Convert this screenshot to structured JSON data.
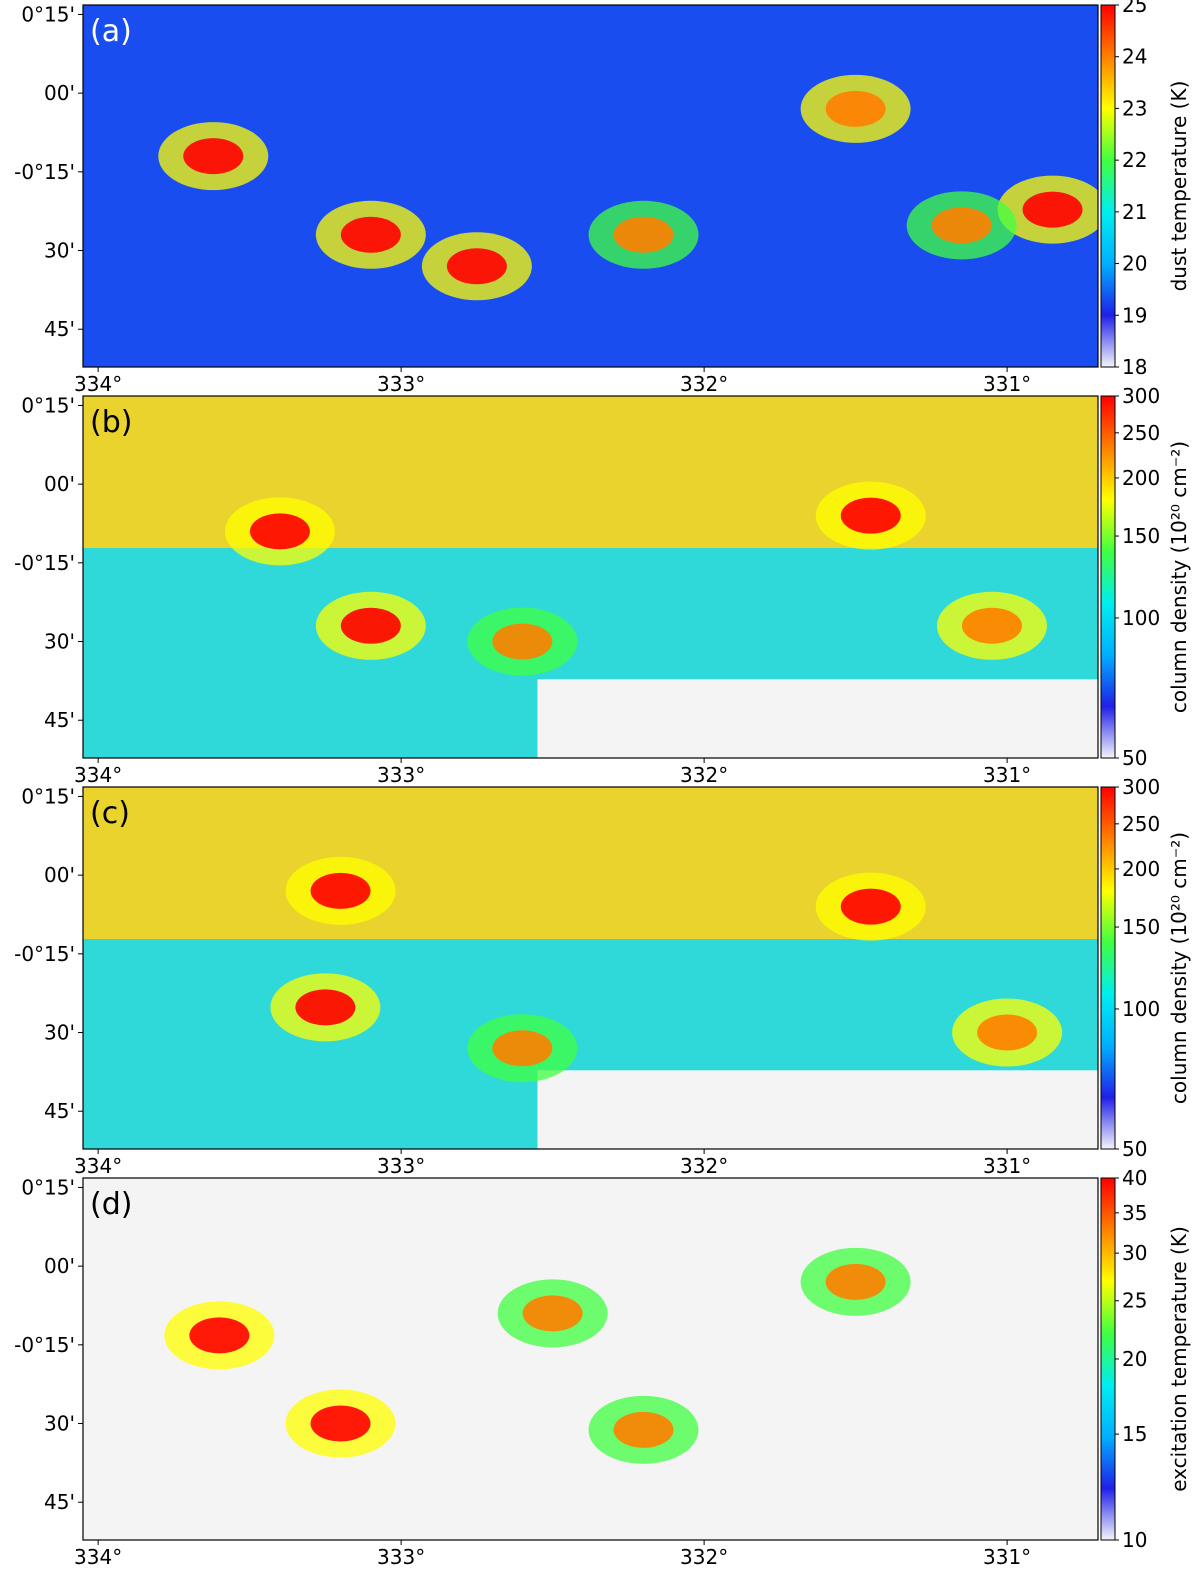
{
  "figure": {
    "x_axis": {
      "tick_labels": [
        "334°",
        "333°",
        "332°",
        "331°"
      ],
      "xlim": [
        334.05,
        330.7
      ]
    },
    "y_axis": {
      "tick_labels": [
        "0°15'",
        "00'",
        "-0°15'",
        "30'",
        "45'"
      ],
      "ylim": [
        -0.87,
        0.28
      ]
    }
  },
  "chart_data": [
    {
      "type": "heatmap",
      "panel_label": "(a)",
      "panel_label_color": "#ffffff",
      "colorbar": {
        "label": "dust temperature (K)",
        "ticks": [
          "25",
          "24",
          "23",
          "22",
          "21",
          "20",
          "19",
          "18"
        ],
        "range": [
          18,
          25
        ],
        "scale": "linear",
        "colors": [
          "#f4f4fb",
          "#2020e8",
          "#00b0ff",
          "#00eeee",
          "#40ff40",
          "#ffff00",
          "#ff8000",
          "#ff0000"
        ]
      },
      "features": [
        {
          "l": 333.62,
          "b": -0.2,
          "level": 1.0
        },
        {
          "l": 333.1,
          "b": -0.45,
          "level": 1.0
        },
        {
          "l": 332.75,
          "b": -0.55,
          "level": 0.95
        },
        {
          "l": 331.5,
          "b": -0.05,
          "level": 0.9
        },
        {
          "l": 330.85,
          "b": -0.37,
          "level": 1.0
        },
        {
          "l": 331.15,
          "b": -0.42,
          "level": 0.85
        },
        {
          "l": 332.2,
          "b": -0.45,
          "level": 0.85
        }
      ]
    },
    {
      "type": "heatmap",
      "panel_label": "(b)",
      "panel_label_color": "#000000",
      "colorbar": {
        "label": "column density (10²⁰ cm⁻²)",
        "ticks": [
          "300",
          "250",
          "200",
          "150",
          "100",
          "50"
        ],
        "range": [
          50,
          300
        ],
        "scale": "log",
        "colors": [
          "#f4f4fb",
          "#2020e8",
          "#00b0ff",
          "#00eeee",
          "#40ff40",
          "#ffff00",
          "#ff8000",
          "#ff0000"
        ]
      },
      "features": [
        {
          "l": 333.4,
          "b": -0.15,
          "level": 1.0
        },
        {
          "l": 333.1,
          "b": -0.45,
          "level": 1.0
        },
        {
          "l": 331.45,
          "b": -0.1,
          "level": 1.0
        },
        {
          "l": 331.05,
          "b": -0.45,
          "level": 0.9
        },
        {
          "l": 332.6,
          "b": -0.5,
          "level": 0.85
        }
      ]
    },
    {
      "type": "heatmap",
      "panel_label": "(c)",
      "panel_label_color": "#000000",
      "colorbar": {
        "label": "column density (10²⁰ cm⁻²)",
        "ticks": [
          "300",
          "250",
          "200",
          "150",
          "100",
          "50"
        ],
        "range": [
          50,
          300
        ],
        "scale": "log",
        "colors": [
          "#f4f4fb",
          "#2020e8",
          "#00b0ff",
          "#00eeee",
          "#40ff40",
          "#ffff00",
          "#ff8000",
          "#ff0000"
        ]
      },
      "features": [
        {
          "l": 333.2,
          "b": -0.05,
          "level": 1.0
        },
        {
          "l": 333.25,
          "b": -0.42,
          "level": 1.0
        },
        {
          "l": 331.45,
          "b": -0.1,
          "level": 1.0
        },
        {
          "l": 331.0,
          "b": -0.5,
          "level": 0.9
        },
        {
          "l": 332.6,
          "b": -0.55,
          "level": 0.85
        }
      ]
    },
    {
      "type": "heatmap",
      "panel_label": "(d)",
      "panel_label_color": "#000000",
      "colorbar": {
        "label": "excitation temperature (K)",
        "ticks": [
          "40",
          "35",
          "30",
          "25",
          "20",
          "15",
          "10"
        ],
        "range": [
          10,
          40
        ],
        "scale": "log",
        "colors": [
          "#f4f4fb",
          "#2020e8",
          "#00b0ff",
          "#00eeee",
          "#40ff40",
          "#ffff00",
          "#ff8000",
          "#ff0000"
        ]
      },
      "features": [
        {
          "l": 333.2,
          "b": -0.5,
          "level": 1.0
        },
        {
          "l": 333.6,
          "b": -0.22,
          "level": 0.95
        },
        {
          "l": 332.5,
          "b": -0.15,
          "level": 0.85
        },
        {
          "l": 331.5,
          "b": -0.05,
          "level": 0.8
        },
        {
          "l": 332.2,
          "b": -0.52,
          "level": 0.85
        }
      ]
    }
  ]
}
